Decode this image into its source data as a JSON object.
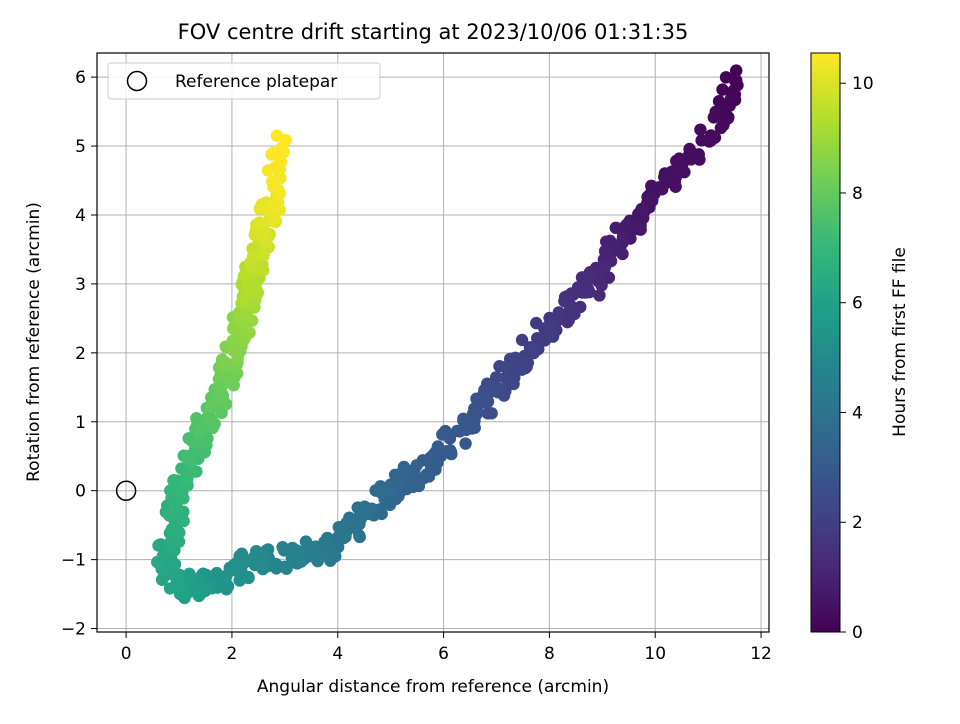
{
  "chart_data": {
    "type": "scatter",
    "title": "FOV centre drift starting at 2023/10/06 01:31:35",
    "xlabel": "Angular distance from reference (arcmin)",
    "ylabel": "Rotation from reference (arcmin)",
    "xlim": [
      -0.55,
      12.15
    ],
    "ylim": [
      -2.05,
      6.35
    ],
    "xticks": [
      "0",
      "2",
      "4",
      "6",
      "8",
      "10",
      "12"
    ],
    "yticks": [
      "−2",
      "−1",
      "0",
      "1",
      "2",
      "3",
      "4",
      "5",
      "6"
    ],
    "grid": true,
    "legend": {
      "placement": "top-left",
      "entries": [
        "Reference platepar"
      ]
    },
    "colorbar": {
      "label": "Hours from first FF file",
      "colormap": "viridis",
      "range": [
        0,
        10.55
      ],
      "ticks": [
        "0",
        "2",
        "4",
        "6",
        "8",
        "10"
      ]
    },
    "reference_point": {
      "x": 0,
      "y": 0
    },
    "anchors": [
      [
        0,
        11.5,
        5.95
      ],
      [
        0.25,
        11.2,
        5.4
      ],
      [
        0.5,
        10.0,
        4.2
      ],
      [
        0.8,
        9.4,
        3.7
      ],
      [
        1.2,
        8.9,
        3.1
      ],
      [
        1.6,
        8.2,
        2.5
      ],
      [
        2.0,
        7.6,
        2.0
      ],
      [
        2.4,
        7.0,
        1.5
      ],
      [
        2.8,
        6.5,
        1.0
      ],
      [
        3.1,
        5.7,
        0.4
      ],
      [
        3.5,
        5.0,
        0.0
      ],
      [
        3.9,
        4.4,
        -0.4
      ],
      [
        4.3,
        3.8,
        -0.85
      ],
      [
        4.7,
        3.0,
        -0.95
      ],
      [
        5.0,
        2.5,
        -1.0
      ],
      [
        5.3,
        2.0,
        -1.2
      ],
      [
        5.6,
        1.5,
        -1.35
      ],
      [
        5.9,
        1.2,
        -1.4
      ],
      [
        6.1,
        0.9,
        -1.3
      ],
      [
        6.3,
        0.75,
        -0.9
      ],
      [
        6.6,
        0.9,
        -0.45
      ],
      [
        6.9,
        1.0,
        0.0
      ],
      [
        7.3,
        1.3,
        0.55
      ],
      [
        7.7,
        1.6,
        1.1
      ],
      [
        8.1,
        1.85,
        1.6
      ],
      [
        8.5,
        2.05,
        2.05
      ],
      [
        8.9,
        2.25,
        2.6
      ],
      [
        9.3,
        2.4,
        3.05
      ],
      [
        9.7,
        2.5,
        3.5
      ],
      [
        10.1,
        2.65,
        3.95
      ],
      [
        10.4,
        2.8,
        4.4
      ],
      [
        10.55,
        2.85,
        5.15
      ]
    ]
  }
}
